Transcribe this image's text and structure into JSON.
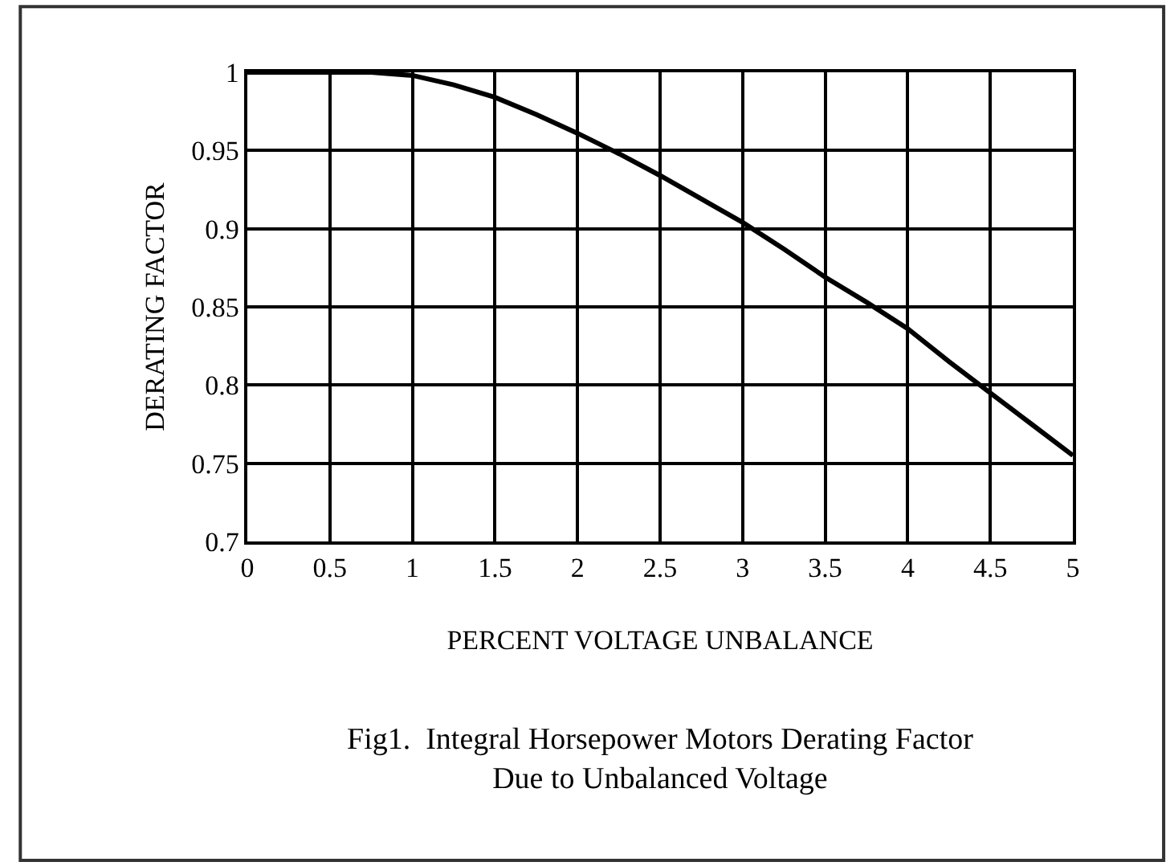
{
  "chart_data": {
    "type": "line",
    "x": [
      0,
      0.25,
      0.5,
      0.75,
      1,
      1.25,
      1.5,
      1.75,
      2,
      2.25,
      2.5,
      2.75,
      3,
      3.25,
      3.5,
      3.75,
      4,
      4.25,
      4.5,
      4.75,
      5
    ],
    "series": [
      {
        "color": "#000000",
        "values": [
          1,
          1,
          1,
          1,
          0.998,
          0.992,
          0.984,
          0.973,
          0.961,
          0.948,
          0.934,
          0.919,
          0.904,
          0.887,
          0.869,
          0.853,
          0.836,
          0.815,
          0.795,
          0.775,
          0.755
        ]
      }
    ],
    "xlabel": "PERCENT VOLTAGE UNBALANCE",
    "ylabel": "DERATING FACTOR",
    "annotations": [
      "Fig1.  Integral Horsepower Motors Derating Factor\nDue to Unbalanced Voltage"
    ],
    "xlim": [
      0,
      5
    ],
    "xticks": [
      0,
      0.5,
      1,
      1.5,
      2,
      2.5,
      3,
      3.5,
      4,
      4.5,
      5
    ],
    "ylim": [
      0.7,
      1
    ],
    "yticks": [
      0.7,
      0.75,
      0.8,
      0.85,
      0.9,
      0.95,
      1
    ],
    "grid": true,
    "legend": false,
    "marker": "none",
    "line_style": "solid"
  }
}
